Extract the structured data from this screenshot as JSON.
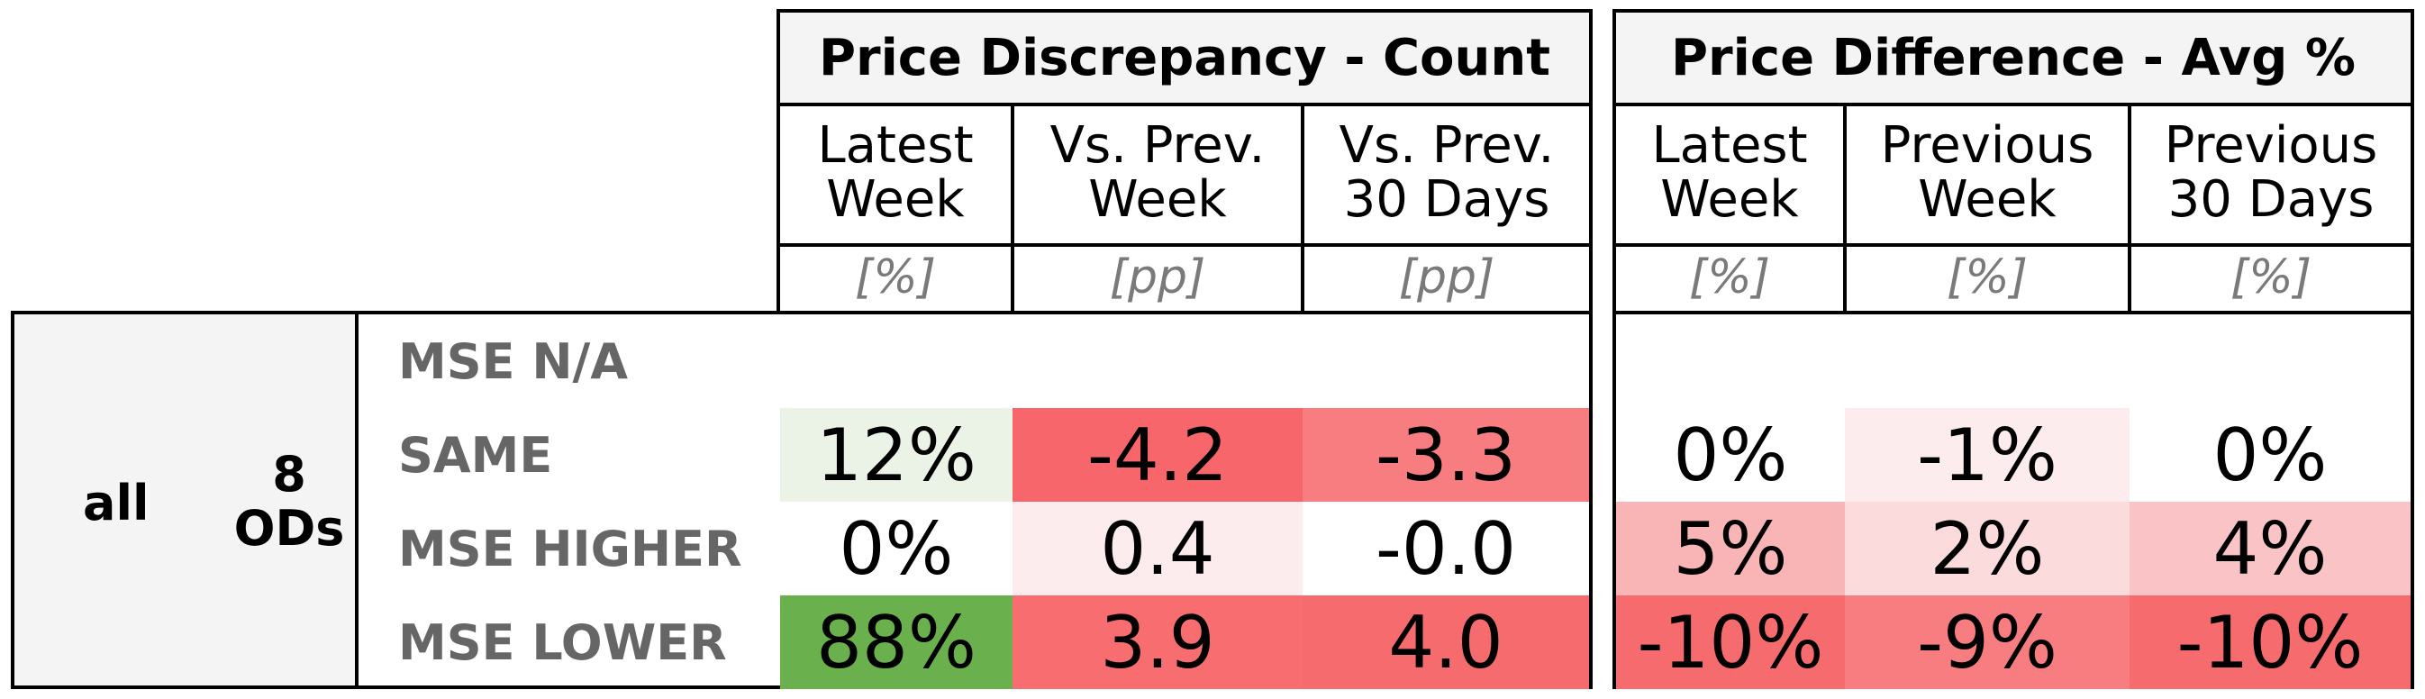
{
  "chart_data": {
    "type": "table",
    "groups": [
      {
        "title": "Price Discrepancy - Count",
        "columns": [
          {
            "header": [
              "Latest",
              "Week"
            ],
            "unit": "[%]"
          },
          {
            "header": [
              "Vs. Prev.",
              "Week"
            ],
            "unit": "[pp]"
          },
          {
            "header": [
              "Vs. Prev.",
              "30 Days"
            ],
            "unit": "[pp]"
          }
        ]
      },
      {
        "title": "Price Difference - Avg %",
        "columns": [
          {
            "header": [
              "Latest",
              "Week"
            ],
            "unit": "[%]"
          },
          {
            "header": [
              "Previous",
              "Week"
            ],
            "unit": "[%]"
          },
          {
            "header": [
              "Previous",
              "30 Days"
            ],
            "unit": "[%]"
          }
        ]
      }
    ],
    "dimension": {
      "label1": "all",
      "label2_line1": "8",
      "label2_line2": "ODs"
    },
    "rows": [
      {
        "label": "MSE N/A",
        "cells": [
          {
            "text": "",
            "color": "#ffffff"
          },
          {
            "text": "",
            "color": "#ffffff"
          },
          {
            "text": "",
            "color": "#ffffff"
          },
          {
            "text": "",
            "color": "#ffffff"
          },
          {
            "text": "",
            "color": "#ffffff"
          },
          {
            "text": "",
            "color": "#ffffff"
          }
        ]
      },
      {
        "label": "SAME",
        "cells": [
          {
            "text": "12%",
            "color": "#ebf3e7"
          },
          {
            "text": "-4.2",
            "color": "#f6666a"
          },
          {
            "text": "-3.3",
            "color": "#f77d80"
          },
          {
            "text": "0%",
            "color": "#ffffff"
          },
          {
            "text": "-1%",
            "color": "#fdeced"
          },
          {
            "text": "0%",
            "color": "#ffffff"
          }
        ]
      },
      {
        "label": "MSE HIGHER",
        "cells": [
          {
            "text": "0%",
            "color": "#ffffff"
          },
          {
            "text": "0.4",
            "color": "#fdeced"
          },
          {
            "text": "-0.0",
            "color": "#ffffff"
          },
          {
            "text": "5%",
            "color": "#f9b4b6"
          },
          {
            "text": "2%",
            "color": "#fcdbdc"
          },
          {
            "text": "4%",
            "color": "#fac4c6"
          }
        ]
      },
      {
        "label": "MSE LOWER",
        "cells": [
          {
            "text": "88%",
            "color": "#6ab04c"
          },
          {
            "text": "3.9",
            "color": "#f76d70"
          },
          {
            "text": "4.0",
            "color": "#f66b6e"
          },
          {
            "text": "-10%",
            "color": "#f66b6e"
          },
          {
            "text": "-9%",
            "color": "#f77d80"
          },
          {
            "text": "-10%",
            "color": "#f66b6e"
          }
        ]
      }
    ]
  }
}
